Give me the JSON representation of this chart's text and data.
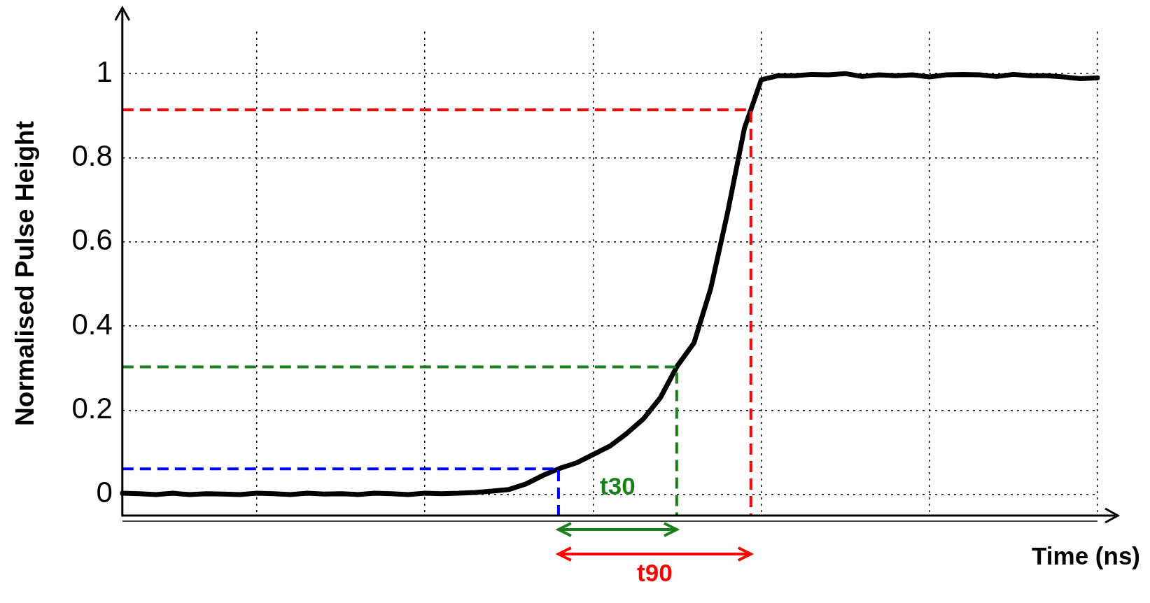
{
  "chart_data": {
    "type": "line",
    "ylabel": "Normalised Pulse Height",
    "xlabel": "Time (ns)",
    "categories": [
      null,
      null,
      null,
      null,
      null,
      null,
      null,
      null,
      null,
      null,
      null,
      null,
      null,
      null,
      null,
      null,
      null,
      null,
      null,
      null,
      null,
      null,
      null,
      null,
      null,
      null,
      null,
      null,
      null,
      null,
      null,
      null,
      null,
      null,
      null,
      null,
      null,
      null,
      null,
      null,
      null,
      null,
      null,
      null,
      null,
      null,
      null,
      null,
      null,
      null,
      null,
      null,
      null,
      null,
      null,
      null,
      null,
      null,
      null
    ],
    "series": [
      {
        "color": "#000000",
        "values": [
          0.003,
          0.002,
          0.0,
          0.003,
          0.0,
          0.002,
          0.001,
          0.0,
          0.003,
          0.002,
          0.0,
          0.003,
          0.001,
          0.002,
          0.0,
          0.003,
          0.002,
          0.0,
          0.003,
          0.002,
          0.003,
          0.005,
          0.008,
          0.012,
          0.025,
          0.045,
          0.062,
          0.075,
          0.095,
          0.115,
          0.145,
          0.18,
          0.23,
          0.305,
          0.36,
          0.49,
          0.67,
          0.87,
          0.985,
          0.995,
          0.995,
          0.998,
          0.997,
          1.0,
          0.993,
          0.997,
          0.995,
          0.997,
          0.992,
          0.997,
          0.998,
          0.997,
          0.993,
          0.998,
          0.995,
          0.995,
          0.992,
          0.988,
          0.99
        ]
      }
    ],
    "ylim": [
      -0.05,
      1.1
    ],
    "yticks": [
      0,
      0.2,
      0.4,
      0.6,
      0.8,
      1
    ],
    "grid": true,
    "tick_labels": "y",
    "marker": "none",
    "ref_lines": [
      {
        "axis": "y",
        "value": 0.061,
        "color": "#0000ff",
        "line_style": "dashed"
      },
      {
        "axis": "y",
        "value": 0.303,
        "color": "#1a801a",
        "line_style": "dashed"
      },
      {
        "axis": "y",
        "value": 0.914,
        "color": "#ff0000",
        "line_style": "dashed"
      }
    ],
    "annotations": [
      "t30",
      "t90"
    ]
  }
}
